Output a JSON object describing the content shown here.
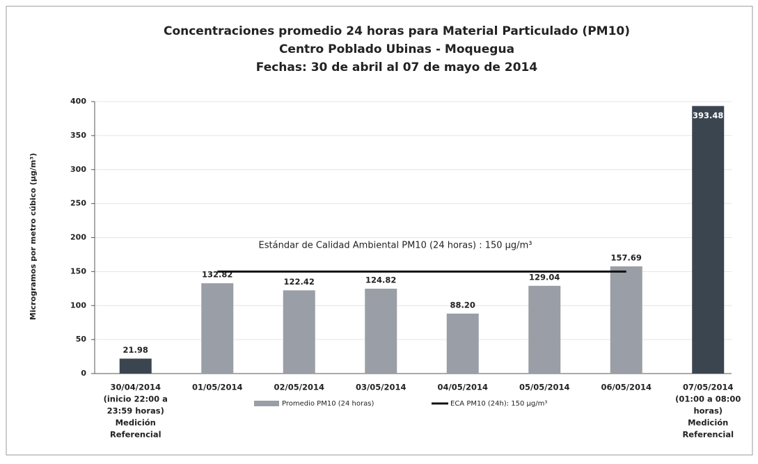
{
  "chart_data": {
    "type": "bar",
    "title": [
      "Concentraciones  promedio 24 horas para Material Particulado (PM10)",
      "Centro  Poblado Ubinas - Moquegua",
      "Fechas: 30 de abril al 07 de mayo de 2014"
    ],
    "y_label": "Microgramos por metro cúbico (µg/m³)",
    "categories": [
      [
        "30/04/2014",
        "(inicio 22:00 a",
        "23:59 horas)",
        "Medición",
        "Referencial"
      ],
      [
        "01/05/2014"
      ],
      [
        "02/05/2014"
      ],
      [
        "03/05/2014"
      ],
      [
        "04/05/2014"
      ],
      [
        "05/05/2014"
      ],
      [
        "06/05/2014"
      ],
      [
        "07/05/2014",
        "(01:00 a 08:00",
        "horas)",
        "Medición",
        "Referencial"
      ]
    ],
    "series": [
      {
        "name": "Promedio PM10 (24 horas)",
        "type": "bar",
        "color": "#9a9ea6",
        "colors": [
          "#3b4550",
          "#9a9ea6",
          "#9a9ea6",
          "#9a9ea6",
          "#9a9ea6",
          "#9a9ea6",
          "#9a9ea6",
          "#3b4550"
        ],
        "values": [
          21.98,
          132.82,
          122.42,
          124.82,
          88.2,
          129.04,
          157.69,
          393.48
        ],
        "value_labels": [
          "21.98",
          "132.82",
          "122.42",
          "124.82",
          "88.20",
          "129.04",
          "157.69",
          "393.48"
        ]
      },
      {
        "name": "ECA PM10 (24h): 150 µg/m³",
        "type": "line",
        "color": "#111111",
        "values": [
          null,
          150,
          150,
          150,
          150,
          150,
          150,
          null
        ]
      }
    ],
    "annotation": "Estándar de Calidad Ambiental PM10 (24 horas) : 150 µg/m³",
    "ylim": [
      0,
      400
    ],
    "yticks": [
      0,
      50,
      100,
      150,
      200,
      250,
      300,
      350,
      400
    ],
    "grid": true,
    "legend": "bottom"
  }
}
